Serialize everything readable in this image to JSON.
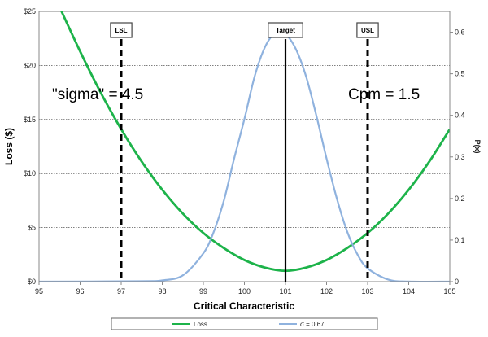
{
  "chart_data": {
    "type": "line",
    "x_axis": {
      "label": "Critical Characteristic",
      "range": [
        95,
        105
      ],
      "ticks": [
        95,
        96,
        97,
        98,
        99,
        100,
        101,
        102,
        103,
        104,
        105
      ],
      "tick_labels": [
        "95",
        "96",
        "97",
        "98",
        "99",
        "100",
        "101",
        "102",
        "103",
        "104",
        "105"
      ]
    },
    "y_axis_left": {
      "label": "Loss ($)",
      "range": [
        0,
        25
      ],
      "ticks": [
        0,
        5,
        10,
        15,
        20,
        25
      ],
      "tick_labels": [
        "$0",
        "$5",
        "$10",
        "$15",
        "$20",
        "$25"
      ]
    },
    "y_axis_right": {
      "label": "P(x)",
      "range": [
        0,
        0.65
      ],
      "ticks": [
        0,
        0.1,
        0.2,
        0.3,
        0.4,
        0.5,
        0.6
      ],
      "tick_labels": [
        "0",
        "0.1",
        "0.2",
        "0.3",
        "0.4",
        "0.5",
        "0.6"
      ]
    },
    "grid": "horizontal",
    "series": [
      {
        "name": "Loss",
        "axis": "left",
        "color": "#1db34a",
        "x": [
          95.5,
          96,
          96.5,
          97,
          97.5,
          98,
          98.5,
          99,
          99.5,
          100,
          100.5,
          101,
          101.5,
          102,
          102.5,
          103,
          103.5,
          104,
          104.5,
          105
        ],
        "y": [
          25.4,
          21.3,
          17.5,
          14.1,
          11.1,
          8.5,
          6.3,
          4.5,
          3.1,
          2.0,
          1.3,
          1.0,
          1.3,
          2.0,
          3.1,
          4.5,
          6.3,
          8.5,
          11.1,
          14.1
        ]
      },
      {
        "name": "σ = 0.67",
        "axis": "right",
        "color": "#8fb2de",
        "x": [
          95,
          97.5,
          98,
          98.5,
          99,
          99.25,
          99.5,
          99.75,
          100,
          100.25,
          100.5,
          100.75,
          101,
          101.25,
          101.5,
          101.75,
          102,
          102.25,
          102.5,
          102.75,
          103,
          103.5,
          104,
          105
        ],
        "y": [
          0,
          0.001,
          0.003,
          0.015,
          0.068,
          0.119,
          0.195,
          0.296,
          0.391,
          0.494,
          0.564,
          0.598,
          0.595,
          0.56,
          0.494,
          0.4,
          0.296,
          0.2,
          0.121,
          0.066,
          0.032,
          0.005,
          0.0003,
          0
        ]
      }
    ],
    "reference_lines": [
      {
        "label": "LSL",
        "x": 97,
        "style": "dashed"
      },
      {
        "label": "Target",
        "x": 101,
        "style": "solid"
      },
      {
        "label": "USL",
        "x": 103,
        "style": "dashed"
      }
    ],
    "annotations": [
      {
        "text": "\"sigma\" = 4.5"
      },
      {
        "text": "Cpm = 1.5"
      }
    ],
    "legend": {
      "position": "bottom",
      "entries": [
        {
          "label": "Loss",
          "color": "#1db34a"
        },
        {
          "label": "σ = 0.67",
          "color": "#8fb2de"
        }
      ]
    }
  }
}
